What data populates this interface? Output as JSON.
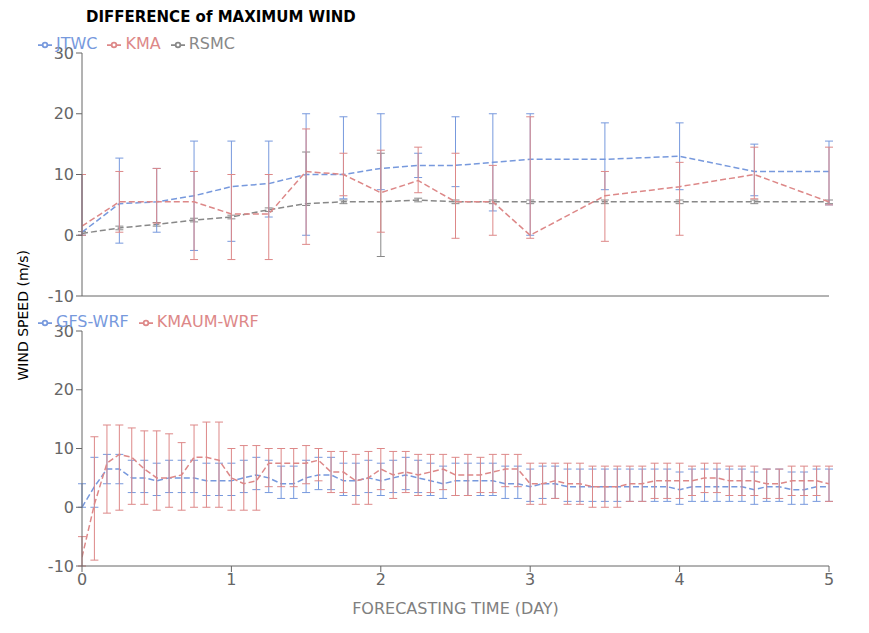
{
  "chart_data": [
    {
      "type": "line",
      "title": "DIFFERENCE of MAXIMUM WIND",
      "ylabel": "WIND SPEED (m/s)",
      "x": [
        0,
        0.25,
        0.5,
        0.75,
        1.0,
        1.25,
        1.5,
        1.75,
        2.0,
        2.25,
        2.5,
        2.75,
        3.0,
        3.5,
        4.0,
        4.5,
        5.0
      ],
      "xlim": [
        0,
        5
      ],
      "xticks": [
        0,
        1,
        2,
        3,
        4,
        5
      ],
      "ylim": [
        -10,
        30
      ],
      "yticks": [
        -10,
        0,
        10,
        20,
        30
      ],
      "grid": false,
      "legend": "upper left",
      "tick_labels": "y",
      "series": [
        {
          "name": "RSMC",
          "color": "#888888",
          "line_style": "dashed",
          "values": [
            0.3,
            1.2,
            1.8,
            2.5,
            3.0,
            4.2,
            5.2,
            5.5,
            5.5,
            5.8,
            5.5,
            5.5,
            5.5,
            5.5,
            5.5,
            5.5,
            5.5
          ],
          "err_up": [
            0.3,
            0.3,
            0.3,
            0.3,
            0.3,
            0.3,
            8.5,
            0.3,
            8.0,
            0.3,
            0.3,
            0.3,
            0.3,
            0.3,
            0.3,
            0.3,
            0.3
          ],
          "err_dn": [
            0.3,
            0.3,
            0.3,
            0.3,
            0.3,
            0.3,
            0.3,
            0.3,
            9.0,
            0.3,
            0.3,
            0.3,
            0.3,
            0.3,
            0.3,
            0.3,
            0.3
          ]
        },
        {
          "name": "JTWC",
          "color": "#7799dd",
          "line_style": "dashed",
          "values": [
            0.5,
            5.2,
            5.5,
            6.5,
            8.0,
            8.5,
            10.0,
            10.0,
            11.0,
            11.5,
            11.5,
            12.0,
            12.5,
            12.5,
            13.0,
            10.5,
            10.5
          ],
          "err_up": [
            9.5,
            7.5,
            5.5,
            9.0,
            7.5,
            7.0,
            10.0,
            9.5,
            9.0,
            2.0,
            8.0,
            8.0,
            7.5,
            6.0,
            5.5,
            4.5,
            5.0
          ],
          "err_dn": [
            0.5,
            6.5,
            5.0,
            9.0,
            9.0,
            5.5,
            10.0,
            4.0,
            3.5,
            2.0,
            3.5,
            8.0,
            12.5,
            5.0,
            5.5,
            4.0,
            5.5
          ]
        },
        {
          "name": "KMA",
          "color": "#dd8888",
          "line_style": "dashed",
          "values": [
            1.5,
            5.5,
            5.5,
            5.5,
            3.5,
            3.5,
            10.5,
            10.0,
            7.0,
            9.0,
            5.5,
            5.5,
            0.0,
            6.5,
            8.0,
            10.0,
            5.5
          ],
          "err_up": [
            8.5,
            5.0,
            5.5,
            5.0,
            6.5,
            6.5,
            7.0,
            3.5,
            7.0,
            5.5,
            8.0,
            6.0,
            19.5,
            4.0,
            4.0,
            4.5,
            9.0
          ],
          "err_dn": [
            1.5,
            5.0,
            3.5,
            9.5,
            7.5,
            7.5,
            12.0,
            3.5,
            6.5,
            2.0,
            6.0,
            5.5,
            0.5,
            7.5,
            8.0,
            4.0,
            0.5
          ]
        }
      ]
    },
    {
      "type": "line",
      "xlabel": "FORECASTING TIME (DAY)",
      "x": [
        0,
        0.083,
        0.167,
        0.25,
        0.333,
        0.417,
        0.5,
        0.583,
        0.667,
        0.75,
        0.833,
        0.917,
        1.0,
        1.083,
        1.167,
        1.25,
        1.333,
        1.417,
        1.5,
        1.583,
        1.667,
        1.75,
        1.833,
        1.917,
        2.0,
        2.083,
        2.167,
        2.25,
        2.333,
        2.417,
        2.5,
        2.583,
        2.667,
        2.75,
        2.833,
        2.917,
        3.0,
        3.083,
        3.167,
        3.25,
        3.333,
        3.417,
        3.5,
        3.583,
        3.667,
        3.75,
        3.833,
        3.917,
        4.0,
        4.083,
        4.167,
        4.25,
        4.333,
        4.417,
        4.5,
        4.583,
        4.667,
        4.75,
        4.833,
        4.917,
        5.0
      ],
      "xlim": [
        0,
        5
      ],
      "xticks": [
        0,
        1,
        2,
        3,
        4,
        5
      ],
      "ylim": [
        -10,
        30
      ],
      "yticks": [
        -10,
        0,
        10,
        20,
        30
      ],
      "grid": false,
      "legend": "upper left",
      "series": [
        {
          "name": "GFS-WRF",
          "color": "#7799dd",
          "line_style": "dashed",
          "values": [
            0.0,
            3.5,
            6.5,
            6.5,
            5.0,
            5.0,
            4.5,
            5.0,
            5.0,
            5.0,
            4.5,
            4.5,
            4.5,
            5.0,
            5.5,
            5.0,
            4.0,
            4.0,
            5.0,
            5.5,
            5.5,
            4.5,
            4.5,
            5.0,
            4.5,
            5.0,
            5.5,
            5.0,
            4.5,
            4.0,
            4.5,
            4.5,
            4.5,
            4.5,
            4.0,
            4.0,
            3.5,
            4.0,
            4.0,
            3.5,
            3.5,
            3.5,
            3.5,
            3.5,
            3.5,
            3.5,
            3.5,
            3.5,
            3.0,
            3.5,
            3.5,
            3.5,
            3.5,
            3.5,
            3.0,
            3.5,
            3.5,
            3.0,
            3.0,
            3.5,
            3.5
          ],
          "err_up": [
            4.0,
            5.0,
            2.5,
            2.5,
            3.0,
            3.0,
            3.0,
            3.0,
            3.0,
            3.0,
            3.0,
            3.0,
            3.0,
            3.0,
            3.0,
            3.0,
            3.0,
            3.0,
            3.0,
            3.0,
            3.0,
            3.0,
            3.0,
            3.0,
            3.0,
            3.0,
            3.0,
            3.0,
            3.0,
            3.0,
            3.0,
            3.0,
            3.0,
            3.0,
            3.0,
            3.0,
            3.0,
            3.0,
            3.0,
            3.0,
            3.0,
            3.0,
            3.0,
            3.0,
            3.0,
            3.0,
            3.0,
            3.0,
            3.0,
            3.0,
            3.0,
            3.0,
            3.0,
            3.0,
            3.0,
            3.0,
            3.0,
            3.0,
            3.0,
            3.0,
            3.0
          ],
          "err_dn": [
            0.0,
            3.5,
            2.5,
            2.5,
            2.5,
            2.5,
            2.5,
            2.5,
            2.5,
            2.5,
            2.5,
            2.5,
            2.5,
            2.5,
            2.5,
            2.5,
            2.5,
            2.5,
            2.5,
            2.5,
            2.5,
            2.5,
            2.5,
            2.5,
            2.5,
            2.5,
            2.5,
            2.5,
            2.5,
            2.5,
            2.5,
            2.5,
            2.5,
            2.5,
            2.5,
            2.5,
            2.5,
            2.5,
            2.5,
            2.5,
            2.5,
            2.5,
            2.5,
            2.5,
            2.5,
            2.5,
            2.5,
            2.5,
            2.5,
            2.5,
            2.5,
            2.5,
            2.5,
            2.5,
            2.5,
            2.5,
            2.5,
            2.5,
            2.5,
            2.5,
            2.5
          ]
        },
        {
          "name": "KMAUM-WRF",
          "color": "#dd8888",
          "line_style": "dashed",
          "values": [
            -8.5,
            0.5,
            7.5,
            9.0,
            8.5,
            6.5,
            5.0,
            5.0,
            5.5,
            8.5,
            8.5,
            8.0,
            5.0,
            4.0,
            4.5,
            7.5,
            7.5,
            7.5,
            7.5,
            8.0,
            6.0,
            6.0,
            4.5,
            5.0,
            6.5,
            5.5,
            6.0,
            5.5,
            6.0,
            6.5,
            5.5,
            5.5,
            5.5,
            6.0,
            6.5,
            6.5,
            4.0,
            4.0,
            4.5,
            4.0,
            4.0,
            3.5,
            3.5,
            3.5,
            4.0,
            4.0,
            4.5,
            4.5,
            4.5,
            4.5,
            5.0,
            5.0,
            4.5,
            4.5,
            4.5,
            4.0,
            4.0,
            4.5,
            4.5,
            4.5,
            4.0
          ],
          "err_up": [
            3.5,
            11.5,
            6.5,
            5.0,
            5.0,
            6.5,
            8.0,
            7.5,
            5.5,
            5.5,
            6.0,
            6.5,
            5.0,
            6.5,
            6.0,
            2.5,
            2.5,
            2.5,
            3.0,
            2.0,
            3.5,
            3.5,
            4.5,
            4.5,
            3.5,
            4.0,
            3.5,
            3.5,
            3.0,
            2.5,
            3.0,
            3.5,
            3.0,
            3.0,
            2.5,
            2.5,
            3.5,
            3.5,
            3.0,
            3.5,
            3.5,
            3.5,
            3.5,
            3.5,
            3.0,
            3.0,
            3.0,
            3.0,
            3.0,
            2.5,
            2.5,
            2.5,
            2.5,
            2.5,
            2.5,
            2.5,
            2.5,
            2.5,
            2.5,
            2.5,
            3.0
          ],
          "err_dn": [
            1.5,
            9.5,
            8.5,
            9.5,
            8.0,
            6.0,
            5.5,
            5.0,
            6.0,
            8.5,
            8.5,
            8.0,
            5.5,
            4.5,
            5.0,
            4.0,
            4.0,
            4.0,
            3.5,
            3.5,
            3.5,
            3.5,
            4.0,
            4.5,
            3.5,
            4.0,
            3.5,
            3.5,
            3.5,
            3.5,
            3.5,
            3.5,
            3.0,
            3.5,
            3.0,
            3.0,
            3.5,
            3.5,
            3.0,
            3.5,
            3.5,
            3.5,
            3.5,
            3.5,
            3.0,
            3.0,
            3.0,
            3.0,
            3.0,
            2.5,
            2.5,
            2.5,
            2.5,
            2.5,
            2.5,
            2.5,
            2.5,
            2.5,
            2.5,
            2.5,
            3.0
          ]
        }
      ]
    }
  ]
}
